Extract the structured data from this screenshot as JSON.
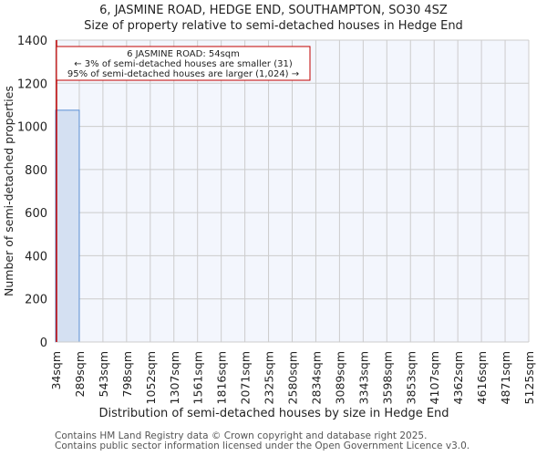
{
  "header": {
    "title": "6, JASMINE ROAD, HEDGE END, SOUTHAMPTON, SO30 4SZ",
    "subtitle": "Size of property relative to semi-detached houses in Hedge End"
  },
  "annotation": {
    "line1": "6 JASMINE ROAD: 54sqm",
    "line2": "← 3% of semi-detached houses are smaller (31)",
    "line3": "95% of semi-detached houses are larger (1,024) →"
  },
  "footer": {
    "line1": "Contains HM Land Registry data © Crown copyright and database right 2025.",
    "line2": "Contains public sector information licensed under the Open Government Licence v3.0."
  },
  "colors": {
    "bar_fill": "#d4e0f2",
    "bar_edge": "#5b8fd4",
    "marker": "#c00000",
    "plot_bg": "#f3f6fd",
    "grid": "#cccccc"
  },
  "chart_data": {
    "type": "bar",
    "title": "6, JASMINE ROAD, HEDGE END, SOUTHAMPTON, SO30 4SZ",
    "subtitle": "Size of property relative to semi-detached houses in Hedge End",
    "xlabel": "Distribution of semi-detached houses by size in Hedge End",
    "ylabel": "Number of semi-detached properties",
    "categories": [
      "34sqm",
      "289sqm",
      "543sqm",
      "798sqm",
      "1052sqm",
      "1307sqm",
      "1561sqm",
      "1816sqm",
      "2071sqm",
      "2325sqm",
      "2580sqm",
      "2834sqm",
      "3089sqm",
      "3343sqm",
      "3598sqm",
      "3853sqm",
      "4107sqm",
      "4362sqm",
      "4616sqm",
      "4871sqm",
      "5125sqm"
    ],
    "values": [
      1075,
      0,
      0,
      0,
      0,
      0,
      0,
      0,
      0,
      0,
      0,
      0,
      0,
      0,
      0,
      0,
      0,
      0,
      0,
      0,
      0
    ],
    "yticks": [
      0,
      200,
      400,
      600,
      800,
      1000,
      1200,
      1400
    ],
    "ylim": [
      0,
      1400
    ],
    "grid": true,
    "marker": {
      "value_sqm": 54,
      "label": "6 JASMINE ROAD: 54sqm"
    }
  }
}
